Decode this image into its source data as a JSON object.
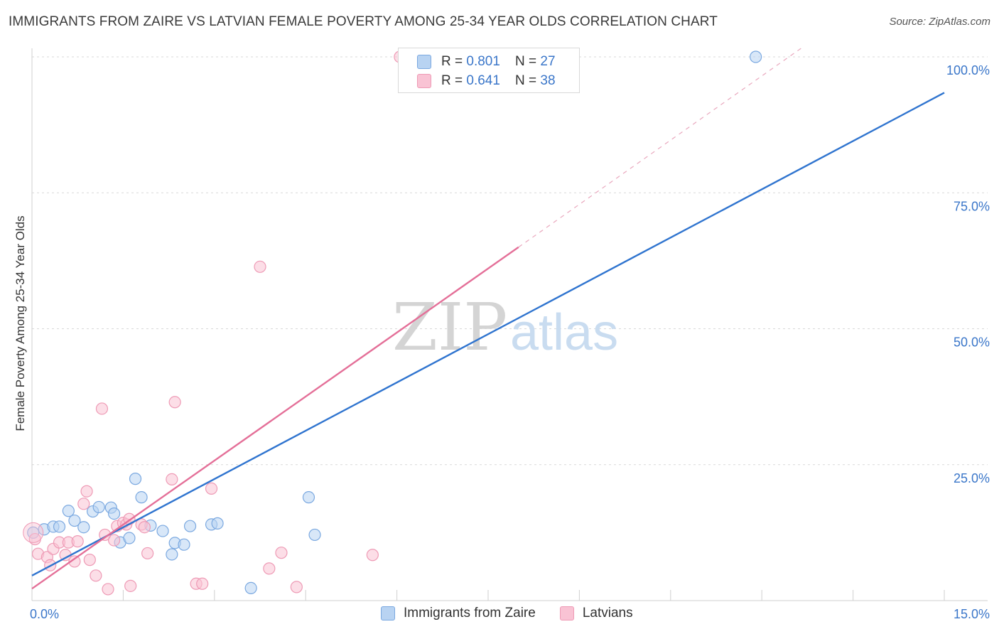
{
  "title": "IMMIGRANTS FROM ZAIRE VS LATVIAN FEMALE POVERTY AMONG 25-34 YEAR OLDS CORRELATION CHART",
  "source": "Source: ZipAtlas.com",
  "watermark": {
    "part1": "ZIP",
    "part2": "atlas"
  },
  "colors": {
    "blue_fill": "#b8d3f2",
    "blue_stroke": "#7aa8e0",
    "blue_line": "#2f74cf",
    "pink_fill": "#f9c3d4",
    "pink_stroke": "#ee9ab5",
    "pink_line": "#e46f98",
    "tick_text": "#3a76c9",
    "grid": "#d9d9d9"
  },
  "stats_legend": {
    "rows": [
      {
        "r_label": "R = ",
        "r_value": "0.801",
        "n_label": "N = ",
        "n_value": "27",
        "color": "#b8d3f2"
      },
      {
        "r_label": "R = ",
        "r_value": "0.641",
        "n_label": "N = ",
        "n_value": "38",
        "color": "#f9c3d4"
      }
    ]
  },
  "legend": {
    "items": [
      {
        "label": "Immigrants from Zaire",
        "color": "#b8d3f2"
      },
      {
        "label": "Latvians",
        "color": "#f9c3d4"
      }
    ]
  },
  "chart_data": {
    "type": "scatter",
    "title": "IMMIGRANTS FROM ZAIRE VS LATVIAN FEMALE POVERTY AMONG 25-34 YEAR OLDS CORRELATION CHART",
    "xlabel": "",
    "ylabel": "Female Poverty Among 25-34 Year Olds",
    "xlim": [
      0,
      15
    ],
    "ylim": [
      0,
      100
    ],
    "x_ticks": [
      {
        "value": 0,
        "label": "0.0%"
      },
      {
        "value": 15,
        "label": "15.0%"
      }
    ],
    "y_ticks": [
      {
        "value": 25,
        "label": "25.0%"
      },
      {
        "value": 50,
        "label": "50.0%"
      },
      {
        "value": 75,
        "label": "75.0%"
      },
      {
        "value": 100,
        "label": "100.0%"
      }
    ],
    "grid": "horizontal dashed",
    "legend_position": "bottom",
    "series": [
      {
        "name": "Immigrants from Zaire",
        "color": "#b8d3f2",
        "points": [
          [
            0.02,
            12.5
          ],
          [
            0.2,
            13.1
          ],
          [
            0.35,
            13.6
          ],
          [
            0.45,
            13.6
          ],
          [
            0.6,
            16.5
          ],
          [
            0.7,
            14.7
          ],
          [
            0.85,
            13.5
          ],
          [
            1.0,
            16.4
          ],
          [
            1.1,
            17.2
          ],
          [
            1.3,
            17.1
          ],
          [
            1.35,
            16.0
          ],
          [
            1.45,
            10.7
          ],
          [
            1.6,
            11.5
          ],
          [
            1.7,
            22.4
          ],
          [
            1.8,
            19.0
          ],
          [
            1.95,
            13.8
          ],
          [
            2.15,
            12.8
          ],
          [
            2.3,
            8.5
          ],
          [
            2.35,
            10.6
          ],
          [
            2.5,
            10.3
          ],
          [
            2.6,
            13.7
          ],
          [
            2.95,
            14.0
          ],
          [
            3.05,
            14.2
          ],
          [
            3.6,
            2.3
          ],
          [
            4.55,
            19.0
          ],
          [
            4.65,
            12.1
          ],
          [
            11.9,
            100.0
          ]
        ],
        "trend": {
          "x0": 0,
          "y0": 4.6,
          "x1": 15,
          "y1": 93.4
        }
      },
      {
        "name": "Latvians",
        "color": "#f9c3d4",
        "points": [
          [
            0.05,
            11.3
          ],
          [
            0.1,
            8.6
          ],
          [
            0.25,
            8.0
          ],
          [
            0.3,
            6.5
          ],
          [
            0.35,
            9.5
          ],
          [
            0.45,
            10.7
          ],
          [
            0.55,
            8.4
          ],
          [
            0.6,
            10.7
          ],
          [
            0.7,
            7.2
          ],
          [
            0.75,
            10.9
          ],
          [
            0.85,
            17.8
          ],
          [
            0.9,
            20.1
          ],
          [
            0.95,
            7.5
          ],
          [
            1.05,
            4.6
          ],
          [
            1.15,
            35.3
          ],
          [
            1.2,
            12.1
          ],
          [
            1.25,
            2.1
          ],
          [
            1.35,
            11.1
          ],
          [
            1.4,
            13.7
          ],
          [
            1.5,
            14.3
          ],
          [
            1.55,
            14.0
          ],
          [
            1.6,
            15.0
          ],
          [
            1.62,
            2.7
          ],
          [
            1.8,
            14.0
          ],
          [
            1.85,
            13.5
          ],
          [
            1.9,
            8.7
          ],
          [
            2.3,
            22.3
          ],
          [
            2.35,
            36.5
          ],
          [
            2.7,
            3.1
          ],
          [
            2.8,
            3.1
          ],
          [
            2.95,
            20.6
          ],
          [
            3.75,
            61.4
          ],
          [
            3.9,
            5.9
          ],
          [
            4.1,
            8.8
          ],
          [
            4.35,
            2.5
          ],
          [
            5.6,
            8.4
          ],
          [
            6.05,
            100.0
          ],
          [
            8.15,
            100.0
          ]
        ],
        "trend": {
          "x0": 0,
          "y0": 2.2,
          "x1": 8.0,
          "y1": 65.0
        },
        "trend_extension": {
          "x0": 8.0,
          "y0": 65.0,
          "x1": 12.7,
          "y1": 102.0
        }
      }
    ]
  }
}
